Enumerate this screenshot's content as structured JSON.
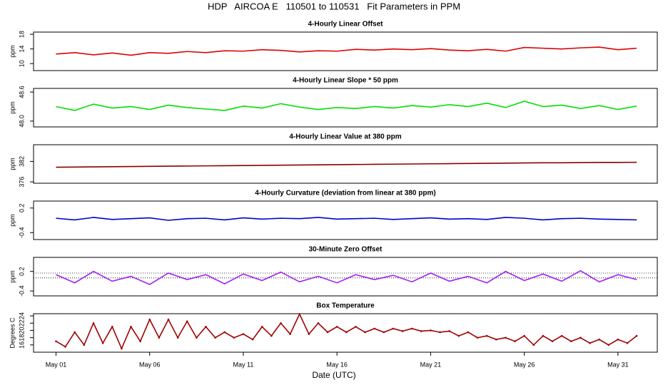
{
  "title": "HDP   AIRCOA E   110501 to 110531   Fit Parameters in PPM",
  "xlabel": "Date (UTC)",
  "chart_data": [
    {
      "type": "line",
      "title": "4-Hourly Linear Offset",
      "ylabel": "ppm",
      "color": "#e00000",
      "x": [
        1,
        2,
        3,
        4,
        5,
        6,
        7,
        8,
        9,
        10,
        11,
        12,
        13,
        14,
        15,
        16,
        17,
        18,
        19,
        20,
        21,
        22,
        23,
        24,
        25,
        26,
        27,
        28,
        29,
        30,
        31,
        32
      ],
      "values": [
        12.6,
        13.0,
        12.4,
        12.9,
        12.3,
        13.0,
        12.8,
        13.3,
        13.0,
        13.5,
        13.4,
        13.8,
        13.6,
        13.2,
        13.5,
        13.4,
        13.9,
        13.7,
        14.0,
        13.8,
        14.1,
        13.7,
        13.5,
        13.9,
        13.4,
        14.4,
        14.2,
        14.0,
        14.3,
        14.5,
        13.8,
        14.2
      ],
      "xlim": [
        -0.2,
        33.1
      ],
      "ylim": [
        8.1,
        18.6
      ],
      "yticks": [
        10,
        14,
        18
      ]
    },
    {
      "type": "line",
      "title": "4-Hourly Linear Slope * 50 ppm",
      "ylabel": "ppm",
      "color": "#00e000",
      "x": [
        1,
        2,
        3,
        4,
        5,
        6,
        7,
        8,
        9,
        10,
        11,
        12,
        13,
        14,
        15,
        16,
        17,
        18,
        19,
        20,
        21,
        22,
        23,
        24,
        25,
        26,
        27,
        28,
        29,
        30,
        31,
        32
      ],
      "values": [
        48.3,
        48.22,
        48.35,
        48.27,
        48.3,
        48.24,
        48.33,
        48.28,
        48.25,
        48.22,
        48.31,
        48.27,
        48.36,
        48.29,
        48.24,
        48.28,
        48.26,
        48.3,
        48.27,
        48.32,
        48.29,
        48.34,
        48.3,
        48.37,
        48.28,
        48.41,
        48.3,
        48.33,
        48.26,
        48.32,
        48.24,
        48.31
      ],
      "xlim": [
        -0.2,
        33.1
      ],
      "ylim": [
        47.88,
        48.675
      ],
      "yticks": [
        {
          "value": 48,
          "label": "48.0"
        },
        48.6
      ]
    },
    {
      "type": "line",
      "title": "4-Hourly Linear Value at 380 ppm",
      "ylabel": "ppm",
      "color": "#8b0000",
      "x": [
        1,
        2,
        3,
        4,
        5,
        6,
        7,
        8,
        9,
        10,
        11,
        12,
        13,
        14,
        15,
        16,
        17,
        18,
        19,
        20,
        21,
        22,
        23,
        24,
        25,
        26,
        27,
        28,
        29,
        30,
        31,
        32
      ],
      "values": [
        380.3,
        380.35,
        380.4,
        380.45,
        380.5,
        380.55,
        380.6,
        380.65,
        380.7,
        380.75,
        380.8,
        380.85,
        380.9,
        380.95,
        381.0,
        381.05,
        381.1,
        381.15,
        381.2,
        381.25,
        381.3,
        381.35,
        381.4,
        381.45,
        381.5,
        381.55,
        381.6,
        381.6,
        381.65,
        381.7,
        381.7,
        381.75
      ],
      "xlim": [
        -0.2,
        33.1
      ],
      "ylim": [
        375.6,
        386.9
      ],
      "yticks": [
        376,
        382
      ]
    },
    {
      "type": "line",
      "title": "4-Hourly Curvature (deviation from linear at 380 ppm)",
      "ylabel": "ppm",
      "color": "#0000cc",
      "x": [
        1,
        2,
        3,
        4,
        5,
        6,
        7,
        8,
        9,
        10,
        11,
        12,
        13,
        14,
        15,
        16,
        17,
        18,
        19,
        20,
        21,
        22,
        23,
        24,
        25,
        26,
        27,
        28,
        29,
        30,
        31,
        32
      ],
      "values": [
        -0.05,
        -0.09,
        -0.03,
        -0.08,
        -0.06,
        -0.04,
        -0.1,
        -0.06,
        -0.05,
        -0.09,
        -0.04,
        -0.07,
        -0.05,
        -0.06,
        -0.03,
        -0.07,
        -0.06,
        -0.05,
        -0.08,
        -0.06,
        -0.04,
        -0.07,
        -0.06,
        -0.08,
        -0.03,
        -0.05,
        -0.09,
        -0.06,
        -0.05,
        -0.07,
        -0.08,
        -0.09
      ],
      "xlim": [
        -0.2,
        33.1
      ],
      "ylim": [
        -0.57,
        0.37
      ],
      "yticks": [
        -0.4,
        0.2
      ]
    },
    {
      "type": "line",
      "title": "30-Minute Zero Offset",
      "ylabel": "ppm",
      "color": "#a020f0",
      "x": [
        1,
        2,
        3,
        4,
        5,
        6,
        7,
        8,
        9,
        10,
        11,
        12,
        13,
        14,
        15,
        16,
        17,
        18,
        19,
        20,
        21,
        22,
        23,
        24,
        25,
        26,
        27,
        28,
        29,
        30,
        31,
        32
      ],
      "values": [
        0.1,
        -0.15,
        0.2,
        -0.1,
        0.05,
        -0.2,
        0.15,
        -0.05,
        0.1,
        -0.18,
        0.12,
        -0.08,
        0.18,
        -0.12,
        0.05,
        -0.15,
        0.1,
        -0.05,
        0.08,
        -0.12,
        0.15,
        -0.1,
        0.05,
        -0.15,
        0.2,
        -0.08,
        0.12,
        -0.1,
        0.22,
        -0.12,
        0.1,
        -0.05
      ],
      "xlim": [
        -0.2,
        33.1
      ],
      "ylim": [
        -0.55,
        0.63
      ],
      "yticks": [
        -0.4,
        0.2
      ],
      "ref_lines": [
        0.15,
        0
      ]
    },
    {
      "type": "line",
      "title": "Box Temperature",
      "ylabel": "Degrees C",
      "color": "#a00000",
      "markers": true,
      "x": [
        1,
        1.5,
        2,
        2.5,
        3,
        3.5,
        4,
        4.5,
        5,
        5.5,
        6,
        6.5,
        7,
        7.5,
        8,
        8.5,
        9,
        9.5,
        10,
        10.5,
        11,
        11.5,
        12,
        12.5,
        13,
        13.5,
        14,
        14.5,
        15,
        15.5,
        16,
        16.5,
        17,
        17.5,
        18,
        18.5,
        19,
        19.5,
        20,
        20.5,
        21,
        21.5,
        22,
        22.5,
        23,
        23.5,
        24,
        24.5,
        25,
        25.5,
        26,
        26.5,
        27,
        27.5,
        28,
        28.5,
        29,
        29.5,
        30,
        30.5,
        31,
        31.5,
        32
      ],
      "values": [
        17,
        15.5,
        19.5,
        16,
        22,
        16.5,
        21,
        15,
        21,
        17,
        23,
        18,
        23,
        18,
        22.5,
        18,
        21,
        18,
        19.5,
        18,
        19,
        17.5,
        21,
        18.5,
        22,
        19,
        24.5,
        19,
        22,
        19.5,
        21,
        19.5,
        21,
        19.5,
        20.5,
        19.5,
        20.5,
        19.8,
        20.5,
        19.8,
        20,
        19.5,
        19.8,
        18.5,
        19.5,
        18,
        18.5,
        17.5,
        18,
        17,
        18.5,
        16,
        18.5,
        17,
        18.5,
        17,
        18,
        16.5,
        17.5,
        16,
        17.5,
        16.5,
        18.5
      ],
      "xlim": [
        -0.2,
        33.1
      ],
      "ylim": [
        14.0,
        24.6
      ],
      "yticks": [
        16,
        18,
        20,
        22,
        24
      ],
      "xticks": [
        {
          "value": 1,
          "label": "May 01"
        },
        {
          "value": 6,
          "label": "May 06"
        },
        {
          "value": 11,
          "label": "May 11"
        },
        {
          "value": 16,
          "label": "May 16"
        },
        {
          "value": 21,
          "label": "May 21"
        },
        {
          "value": 26,
          "label": "May 26"
        },
        {
          "value": 31,
          "label": "May 31"
        }
      ]
    }
  ]
}
